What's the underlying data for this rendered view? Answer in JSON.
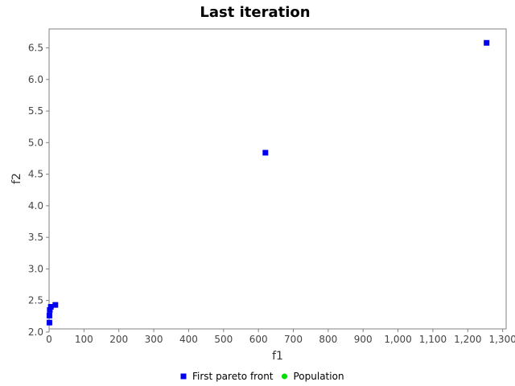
{
  "chart_data": {
    "type": "scatter",
    "title": "Last iteration",
    "xlabel": "f1",
    "ylabel": "f2",
    "xlim": [
      0,
      1310
    ],
    "ylim": [
      2.05,
      6.8
    ],
    "xticks": [
      0,
      100,
      200,
      300,
      400,
      500,
      600,
      700,
      800,
      900,
      1000,
      1100,
      1200,
      1300
    ],
    "xtick_labels": [
      "0",
      "100",
      "200",
      "300",
      "400",
      "500",
      "600",
      "700",
      "800",
      "900",
      "1,000",
      "1,100",
      "1,200",
      "1,300"
    ],
    "yticks": [
      2.0,
      2.5,
      3.0,
      3.5,
      4.0,
      4.5,
      5.0,
      5.5,
      6.0,
      6.5
    ],
    "ytick_labels": [
      "2.0",
      "2.5",
      "3.0",
      "3.5",
      "4.0",
      "4.5",
      "5.0",
      "5.5",
      "6.0",
      "6.5"
    ],
    "legend_position": "bottom",
    "series": [
      {
        "name": "First pareto front",
        "marker": "square",
        "color": "#0000ee",
        "points": [
          {
            "x": 1254,
            "y": 6.58
          },
          {
            "x": 620,
            "y": 4.84
          },
          {
            "x": 18,
            "y": 2.43
          },
          {
            "x": 5,
            "y": 2.4
          },
          {
            "x": 2,
            "y": 2.35
          },
          {
            "x": 1,
            "y": 2.26
          },
          {
            "x": 1,
            "y": 2.15
          }
        ]
      },
      {
        "name": "Population",
        "marker": "circle",
        "color": "#00dd00",
        "points": []
      }
    ]
  }
}
